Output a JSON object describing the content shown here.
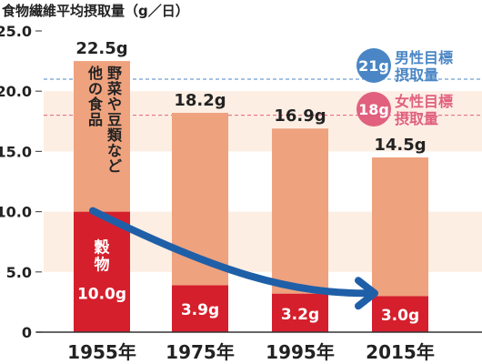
{
  "chart_data": {
    "type": "bar",
    "title": "食物繊維平均摂取量（g／日）",
    "categories": [
      "1955年",
      "1975年",
      "1995年",
      "2015年"
    ],
    "series": [
      {
        "name": "穀物",
        "values": [
          10.0,
          3.9,
          3.2,
          3.0
        ]
      },
      {
        "name": "野菜や豆類など他の食品",
        "values": [
          12.5,
          14.3,
          13.7,
          11.5
        ]
      }
    ],
    "totals": [
      22.5,
      18.2,
      16.9,
      14.5
    ],
    "total_labels": [
      "22.5g",
      "18.2g",
      "16.9g",
      "14.5g"
    ],
    "grain_labels": [
      "10.0g",
      "3.9g",
      "3.2g",
      "3.0g"
    ],
    "yticks": [
      "0",
      "5.0",
      "10.0",
      "15.0",
      "20.0",
      "25.0"
    ],
    "ylim": [
      0,
      25
    ],
    "grain_name": "穀物",
    "other_name_line1": "野菜や豆類など",
    "other_name_line2": "他の食品",
    "targets": [
      {
        "value_label": "21g",
        "label_line1": "男性目標",
        "label_line2": "摂取量",
        "value": 21,
        "color": "#4a86c5"
      },
      {
        "value_label": "18g",
        "label_line1": "女性目標",
        "label_line2": "摂取量",
        "value": 18,
        "color": "#e0607e"
      }
    ],
    "colors": {
      "grain": "#d51f2c",
      "other": "#eea27e",
      "band": "#fdeee3",
      "arrow": "#1f5fa8"
    },
    "grid": false,
    "legend": "inline labels on first bar"
  }
}
